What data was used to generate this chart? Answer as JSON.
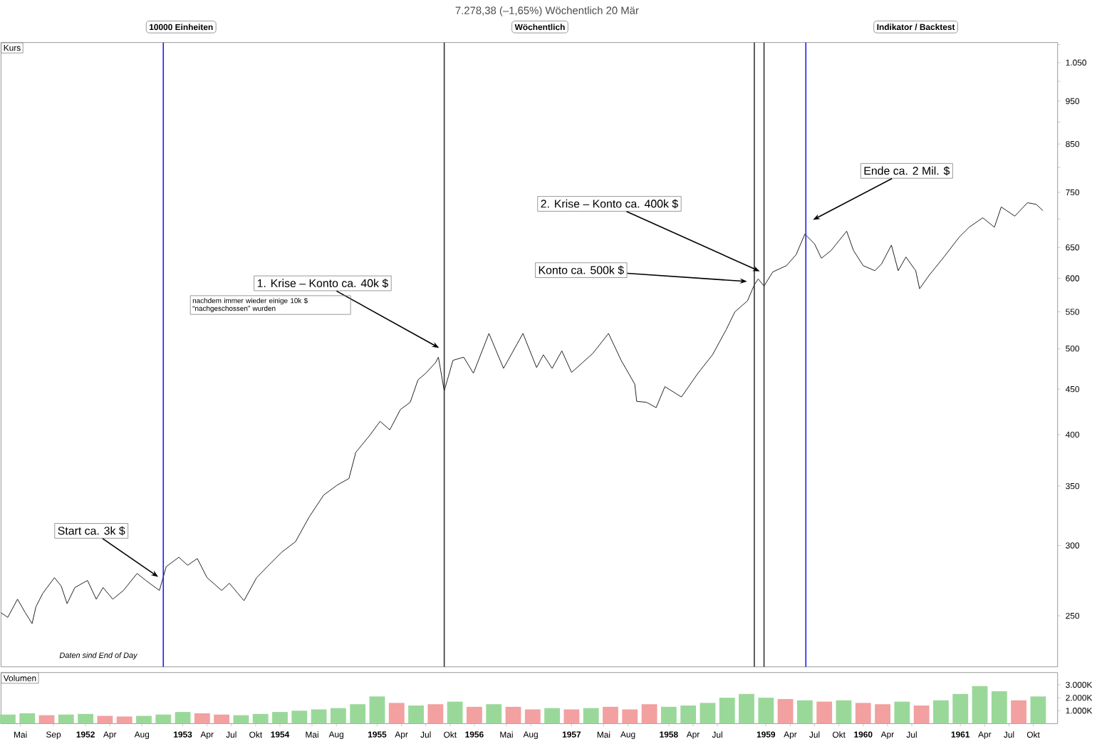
{
  "chart_data": [
    {
      "type": "line",
      "title": "7.278,38 (–1,65%) Wöchentlich 20 Mär",
      "ylabel": "Kurs",
      "log": "y",
      "tick_labels": "y",
      "x": [
        1951.13,
        1951.2,
        1951.3,
        1951.38,
        1951.45,
        1951.49,
        1951.56,
        1951.68,
        1951.75,
        1951.81,
        1951.89,
        1952.02,
        1952.11,
        1952.18,
        1952.28,
        1952.39,
        1952.53,
        1952.62,
        1952.76,
        1952.83,
        1952.96,
        1953.05,
        1953.15,
        1953.25,
        1953.4,
        1953.48,
        1953.63,
        1953.76,
        1953.87,
        1954.02,
        1954.16,
        1954.3,
        1954.45,
        1954.59,
        1954.71,
        1954.78,
        1954.93,
        1955.03,
        1955.13,
        1955.24,
        1955.34,
        1955.42,
        1955.5,
        1955.6,
        1955.63,
        1955.69,
        1955.78,
        1955.89,
        1955.99,
        1956.15,
        1956.3,
        1956.5,
        1956.64,
        1956.71,
        1956.8,
        1956.9,
        1957.0,
        1957.22,
        1957.38,
        1957.51,
        1957.65,
        1957.67,
        1957.77,
        1957.87,
        1957.96,
        1958.13,
        1958.3,
        1958.45,
        1958.59,
        1958.68,
        1958.81,
        1958.88,
        1958.92,
        1958.98,
        1959.07,
        1959.21,
        1959.31,
        1959.4,
        1959.5,
        1959.57,
        1959.67,
        1959.83,
        1959.9,
        1960.0,
        1960.12,
        1960.19,
        1960.29,
        1960.36,
        1960.44,
        1960.54,
        1960.58,
        1960.68,
        1960.83,
        1960.99,
        1961.09,
        1961.23,
        1961.35,
        1961.42,
        1961.56,
        1961.69,
        1961.78,
        1961.85
      ],
      "series": [
        {
          "color": "#222222",
          "values": [
            252,
            249,
            261,
            252,
            245,
            256,
            265,
            276,
            270,
            258,
            269,
            274,
            261,
            269,
            261,
            267,
            279,
            274,
            267,
            284,
            291,
            285,
            290,
            276,
            267,
            272,
            260,
            276,
            284,
            295,
            303,
            323,
            342,
            351,
            357,
            382,
            400,
            414,
            405,
            427,
            435,
            461,
            469,
            482,
            489,
            448,
            485,
            489,
            469,
            520,
            475,
            520,
            476,
            492,
            475,
            497,
            470,
            494,
            520,
            485,
            456,
            436,
            435,
            429,
            453,
            441,
            469,
            492,
            525,
            550,
            566,
            590,
            599,
            588,
            610,
            620,
            638,
            673,
            656,
            632,
            645,
            678,
            645,
            620,
            612,
            623,
            654,
            612,
            634,
            612,
            584,
            605,
            634,
            668,
            685,
            702,
            685,
            722,
            705,
            730,
            727,
            715
          ]
        }
      ],
      "xlim": [
        1951.13,
        1962.0
      ],
      "ylim": [
        219,
        1106
      ],
      "yticks": [
        250,
        300,
        350,
        400,
        450,
        500,
        550,
        600,
        650,
        {
          "value": 700,
          "label": null
        },
        750,
        {
          "value": 800,
          "label": null
        },
        850,
        {
          "value": 900,
          "label": null
        },
        950,
        {
          "value": 1000,
          "label": null
        },
        {
          "value": 1050,
          "label": "1.050"
        },
        {
          "value": 1100,
          "label": null
        }
      ],
      "ref_lines": [
        {
          "axis": "x",
          "value": 1952.8,
          "color": "#1a1aff"
        },
        {
          "axis": "x",
          "value": 1955.69,
          "color": "#333333"
        },
        {
          "axis": "x",
          "value": 1958.88,
          "color": "#333333"
        },
        {
          "axis": "x",
          "value": 1958.98,
          "color": "#333333"
        },
        {
          "axis": "x",
          "value": 1959.41,
          "color": "#1a1aff"
        }
      ],
      "annotations": [
        "10000 Einheiten",
        "Wöchentlich",
        "Indikator / Backtest",
        "nachdem immer wieder einige 10k $ “nachgeschossen” wurden",
        "Daten sind End of Day",
        {
          "text": "Start ca. 3k $",
          "x": 1952.76,
          "y": 276
        },
        {
          "text": "1. Krise – Konto ca. 40k $",
          "x": 1955.65,
          "y": 500
        },
        {
          "text": "Konto ca. 500k $",
          "x": 1958.82,
          "y": 595
        },
        {
          "text": "2. Krise – Konto ca. 400k $",
          "x": 1958.95,
          "y": 610
        },
        {
          "text": "Ende ca. 2 Mil. $",
          "x": 1959.47,
          "y": 697
        }
      ]
    },
    {
      "type": "bar",
      "ylabel": "Volumen",
      "x": [
        1951.2,
        1951.4,
        1951.6,
        1951.8,
        1952.0,
        1952.2,
        1952.4,
        1952.6,
        1952.8,
        1953.0,
        1953.2,
        1953.4,
        1953.6,
        1953.8,
        1954.0,
        1954.2,
        1954.4,
        1954.6,
        1954.8,
        1955.0,
        1955.2,
        1955.4,
        1955.6,
        1955.8,
        1956.0,
        1956.2,
        1956.4,
        1956.6,
        1956.8,
        1957.0,
        1957.2,
        1957.4,
        1957.6,
        1957.8,
        1958.0,
        1958.2,
        1958.4,
        1958.6,
        1958.8,
        1959.0,
        1959.2,
        1959.4,
        1959.6,
        1959.8,
        1960.0,
        1960.2,
        1960.4,
        1960.6,
        1960.8,
        1961.0,
        1961.2,
        1961.4,
        1961.6,
        1961.8
      ],
      "values": [
        700,
        800,
        650,
        700,
        750,
        600,
        550,
        600,
        700,
        900,
        800,
        700,
        650,
        750,
        900,
        1000,
        1100,
        1200,
        1500,
        2100,
        1600,
        1400,
        1500,
        1700,
        1300,
        1500,
        1300,
        1100,
        1200,
        1100,
        1200,
        1300,
        1100,
        1500,
        1300,
        1400,
        1600,
        2000,
        2300,
        2000,
        1900,
        1800,
        1700,
        1800,
        1600,
        1500,
        1700,
        1400,
        1800,
        2300,
        2900,
        2500,
        1800,
        2100
      ],
      "colors": [
        "#9ad89a",
        "#9ad89a",
        "#f2a0a0",
        "#9ad89a",
        "#9ad89a",
        "#f2a0a0",
        "#f2a0a0",
        "#9ad89a",
        "#9ad89a",
        "#9ad89a",
        "#f2a0a0",
        "#f2a0a0",
        "#9ad89a",
        "#9ad89a",
        "#9ad89a",
        "#9ad89a",
        "#9ad89a",
        "#9ad89a",
        "#9ad89a",
        "#9ad89a",
        "#f2a0a0",
        "#9ad89a",
        "#f2a0a0",
        "#9ad89a",
        "#f2a0a0",
        "#9ad89a",
        "#f2a0a0",
        "#f2a0a0",
        "#9ad89a",
        "#f2a0a0",
        "#9ad89a",
        "#f2a0a0",
        "#f2a0a0",
        "#f2a0a0",
        "#9ad89a",
        "#9ad89a",
        "#9ad89a",
        "#9ad89a",
        "#9ad89a",
        "#9ad89a",
        "#f2a0a0",
        "#9ad89a",
        "#f2a0a0",
        "#9ad89a",
        "#f2a0a0",
        "#f2a0a0",
        "#9ad89a",
        "#f2a0a0",
        "#9ad89a",
        "#9ad89a",
        "#9ad89a",
        "#9ad89a",
        "#f2a0a0",
        "#9ad89a"
      ],
      "xlim": [
        1951.13,
        1962.0
      ],
      "xticks": [
        {
          "value": 1951.33,
          "label": "Mai"
        },
        {
          "value": 1951.67,
          "label": "Sep"
        },
        1952,
        {
          "value": 1952.25,
          "label": "Apr"
        },
        {
          "value": 1952.58,
          "label": "Aug"
        },
        1953,
        {
          "value": 1953.25,
          "label": "Apr"
        },
        {
          "value": 1953.5,
          "label": "Jul"
        },
        {
          "value": 1953.75,
          "label": "Okt"
        },
        1954,
        {
          "value": 1954.33,
          "label": "Mai"
        },
        {
          "value": 1954.58,
          "label": "Aug"
        },
        1955,
        {
          "value": 1955.25,
          "label": "Apr"
        },
        {
          "value": 1955.5,
          "label": "Jul"
        },
        {
          "value": 1955.75,
          "label": "Okt"
        },
        1956,
        {
          "value": 1956.33,
          "label": "Mai"
        },
        {
          "value": 1956.58,
          "label": "Aug"
        },
        1957,
        {
          "value": 1957.33,
          "label": "Mai"
        },
        {
          "value": 1957.58,
          "label": "Aug"
        },
        1958,
        {
          "value": 1958.25,
          "label": "Apr"
        },
        {
          "value": 1958.5,
          "label": "Jul"
        },
        1959,
        {
          "value": 1959.25,
          "label": "Apr"
        },
        {
          "value": 1959.5,
          "label": "Jul"
        },
        {
          "value": 1959.75,
          "label": "Okt"
        },
        1960,
        {
          "value": 1960.25,
          "label": "Apr"
        },
        {
          "value": 1960.5,
          "label": "Jul"
        },
        1961,
        {
          "value": 1961.25,
          "label": "Apr"
        },
        {
          "value": 1961.5,
          "label": "Jul"
        },
        {
          "value": 1961.75,
          "label": "Okt"
        }
      ],
      "ylim": [
        0,
        3950
      ],
      "yticks": [
        {
          "value": 1000,
          "label": "1.000K"
        },
        {
          "value": 2000,
          "label": "2.000K"
        },
        {
          "value": 3000,
          "label": "3.000K"
        }
      ]
    }
  ]
}
